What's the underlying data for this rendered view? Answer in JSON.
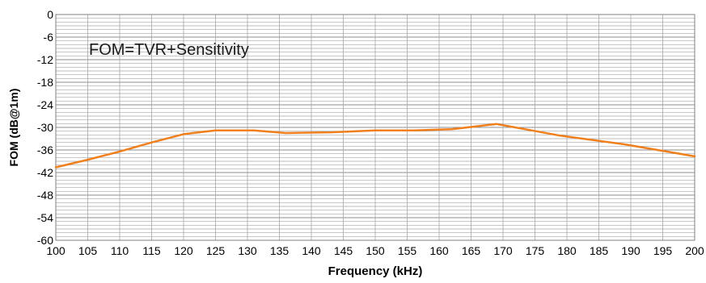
{
  "chart_data": {
    "type": "line",
    "annotation": "FOM=TVR+Sensitivity",
    "xlabel": "Frequency (kHz)",
    "ylabel": "FOM (dB@1m)",
    "xlim": [
      100,
      200
    ],
    "ylim": [
      -60,
      0
    ],
    "x_ticks": [
      100,
      105,
      110,
      115,
      120,
      125,
      130,
      135,
      140,
      145,
      150,
      155,
      160,
      165,
      170,
      175,
      180,
      185,
      190,
      195,
      200
    ],
    "y_ticks": [
      0,
      -6,
      -12,
      -18,
      -24,
      -30,
      -36,
      -42,
      -48,
      -54,
      -60
    ],
    "grid": true,
    "minor_y_step": 1,
    "series": [
      {
        "color": "#f07f1e",
        "x": [
          100,
          105,
          110,
          115,
          120,
          125,
          131,
          136,
          143,
          150,
          156,
          162,
          169,
          179,
          189,
          200
        ],
        "y": [
          -40.6,
          -38.6,
          -36.4,
          -34.0,
          -31.8,
          -30.8,
          -30.8,
          -31.5,
          -31.3,
          -30.8,
          -30.8,
          -30.5,
          -29.1,
          -32.2,
          -34.5,
          -37.7
        ]
      }
    ]
  },
  "colors": {
    "grid": "#a6a6a6",
    "axis": "#808080",
    "text": "#000000"
  }
}
